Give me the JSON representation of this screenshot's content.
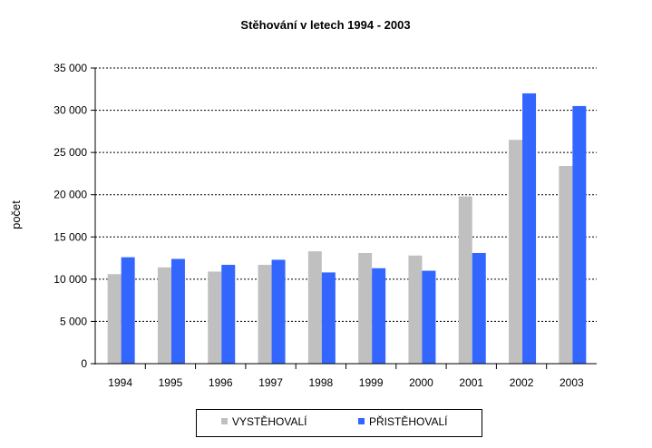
{
  "chart_data": {
    "type": "bar",
    "title": "Stěhování  v letech 1994 - 2003",
    "xlabel": "",
    "ylabel": "počet",
    "ylim": [
      0,
      35000
    ],
    "yticks": [
      "0",
      "5 000",
      "10 000",
      "15 000",
      "20 000",
      "25 000",
      "30 000",
      "35 000"
    ],
    "ytick_values": [
      0,
      5000,
      10000,
      15000,
      20000,
      25000,
      30000,
      35000
    ],
    "categories": [
      "1994",
      "1995",
      "1996",
      "1997",
      "1998",
      "1999",
      "2000",
      "2001",
      "2002",
      "2003"
    ],
    "series": [
      {
        "name": "VYSTĚHOVALÍ",
        "color": "#c0c0c0",
        "values": [
          10600,
          11400,
          10900,
          11700,
          13300,
          13100,
          12800,
          19800,
          26500,
          23400
        ]
      },
      {
        "name": "PŘISTĚHOVALÍ",
        "color": "#3366ff",
        "values": [
          12600,
          12400,
          11700,
          12300,
          10800,
          11300,
          11000,
          13100,
          32000,
          30500
        ]
      }
    ],
    "grid": true,
    "grid_style": "dashed",
    "legend_position": "bottom"
  }
}
